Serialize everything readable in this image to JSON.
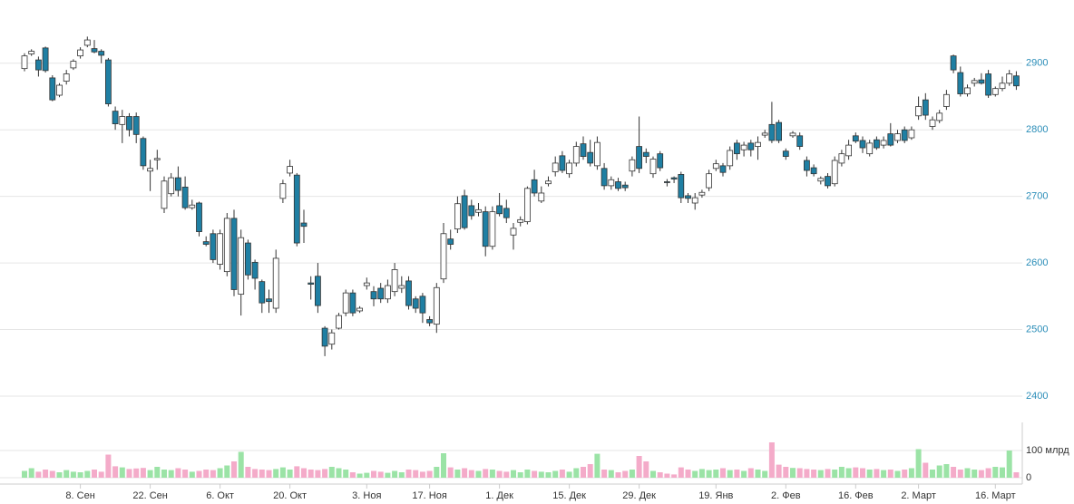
{
  "chart_data": {
    "type": "candlestick",
    "categories": [
      null,
      null,
      null,
      null,
      null,
      null,
      null,
      null,
      "8. Сен",
      null,
      null,
      null,
      null,
      null,
      null,
      null,
      null,
      null,
      "22. Сен",
      null,
      null,
      null,
      null,
      null,
      null,
      null,
      null,
      null,
      "6. Окт",
      null,
      null,
      null,
      null,
      null,
      null,
      null,
      null,
      null,
      "20. Окт",
      null,
      null,
      null,
      null,
      null,
      null,
      null,
      null,
      null,
      null,
      "3. Ноя",
      null,
      null,
      null,
      null,
      null,
      null,
      null,
      null,
      "17. Ноя",
      null,
      null,
      null,
      null,
      null,
      null,
      null,
      null,
      null,
      "1. Дек",
      null,
      null,
      null,
      null,
      null,
      null,
      null,
      null,
      null,
      "15. Дек",
      null,
      null,
      null,
      null,
      null,
      null,
      null,
      null,
      null,
      "29. Дек",
      null,
      null,
      null,
      null,
      null,
      null,
      null,
      null,
      null,
      null,
      "19. Янв",
      null,
      null,
      null,
      null,
      null,
      null,
      null,
      null,
      null,
      "2. Фев",
      null,
      null,
      null,
      null,
      null,
      null,
      null,
      null,
      null,
      "16. Фев",
      null,
      null,
      null,
      null,
      null,
      null,
      null,
      null,
      "2. Март",
      null,
      null,
      null,
      null,
      null,
      null,
      null,
      null,
      null,
      null,
      "16. Март",
      null,
      null,
      null
    ],
    "open": [
      2892,
      2914,
      2905,
      2923,
      2878,
      2852,
      2873,
      2893,
      2911,
      2927,
      2922,
      2918,
      2905,
      2828,
      2808,
      2820,
      2820,
      2787,
      2738,
      2755,
      2682,
      2704,
      2728,
      2714,
      2683,
      2690,
      2632,
      2644,
      2598,
      2587,
      2667,
      2553,
      2630,
      2601,
      2572,
      2546,
      2532,
      2697,
      2735,
      2732,
      2660,
      2570,
      2580,
      2502,
      2478,
      2502,
      2525,
      2555,
      2528,
      2566,
      2557,
      2562,
      2546,
      2557,
      2562,
      2573,
      2546,
      2550,
      2515,
      2508,
      2576,
      2636,
      2651,
      2701,
      2686,
      2676,
      2677,
      2625,
      2686,
      2682,
      2642,
      2661,
      2662,
      2725,
      2693,
      2719,
      2737,
      2761,
      2734,
      2750,
      2779,
      2766,
      2746,
      2742,
      2716,
      2722,
      2717,
      2738,
      2775,
      2766,
      2734,
      2764,
      2722,
      2728,
      2733,
      2701,
      2690,
      2702,
      2713,
      2742,
      2746,
      2746,
      2780,
      2770,
      2780,
      2775,
      2792,
      2808,
      2811,
      2768,
      2791,
      2791,
      2754,
      2743,
      2723,
      2730,
      2719,
      2750,
      2761,
      2791,
      2784,
      2764,
      2785,
      2777,
      2794,
      2784,
      2800,
      2788,
      2821,
      2845,
      2805,
      2814,
      2835,
      2911,
      2886,
      2854,
      2870,
      2875,
      2884,
      2853,
      2862,
      2870,
      2881
    ],
    "high": [
      2915,
      2921,
      2910,
      2925,
      2882,
      2870,
      2890,
      2906,
      2924,
      2940,
      2935,
      2921,
      2908,
      2835,
      2830,
      2825,
      2826,
      2790,
      2755,
      2770,
      2730,
      2735,
      2745,
      2730,
      2695,
      2692,
      2640,
      2650,
      2650,
      2675,
      2680,
      2650,
      2635,
      2605,
      2575,
      2560,
      2620,
      2725,
      2755,
      2735,
      2680,
      2580,
      2600,
      2505,
      2500,
      2525,
      2560,
      2560,
      2535,
      2578,
      2565,
      2570,
      2575,
      2600,
      2580,
      2580,
      2550,
      2555,
      2520,
      2570,
      2660,
      2650,
      2700,
      2710,
      2695,
      2690,
      2685,
      2685,
      2705,
      2695,
      2660,
      2670,
      2715,
      2740,
      2715,
      2730,
      2760,
      2768,
      2755,
      2782,
      2790,
      2785,
      2790,
      2750,
      2730,
      2728,
      2722,
      2760,
      2820,
      2772,
      2760,
      2768,
      2726,
      2730,
      2737,
      2705,
      2705,
      2710,
      2740,
      2755,
      2750,
      2775,
      2785,
      2782,
      2785,
      2790,
      2800,
      2842,
      2815,
      2772,
      2798,
      2796,
      2760,
      2748,
      2730,
      2735,
      2760,
      2770,
      2785,
      2796,
      2790,
      2785,
      2790,
      2790,
      2810,
      2800,
      2805,
      2805,
      2850,
      2855,
      2820,
      2830,
      2860,
      2913,
      2895,
      2868,
      2878,
      2885,
      2890,
      2865,
      2880,
      2890,
      2888
    ],
    "low": [
      2888,
      2911,
      2880,
      2886,
      2843,
      2849,
      2868,
      2890,
      2907,
      2924,
      2915,
      2900,
      2835,
      2800,
      2780,
      2790,
      2780,
      2740,
      2708,
      2740,
      2675,
      2700,
      2700,
      2680,
      2680,
      2640,
      2625,
      2600,
      2590,
      2580,
      2550,
      2521,
      2575,
      2560,
      2525,
      2525,
      2525,
      2690,
      2730,
      2625,
      2630,
      2545,
      2525,
      2460,
      2470,
      2500,
      2520,
      2520,
      2525,
      2560,
      2535,
      2540,
      2540,
      2550,
      2555,
      2530,
      2525,
      2510,
      2505,
      2495,
      2570,
      2620,
      2645,
      2650,
      2665,
      2670,
      2610,
      2620,
      2670,
      2660,
      2620,
      2655,
      2658,
      2700,
      2690,
      2715,
      2730,
      2735,
      2728,
      2745,
      2755,
      2745,
      2740,
      2710,
      2710,
      2708,
      2708,
      2730,
      2735,
      2750,
      2728,
      2738,
      2715,
      2720,
      2690,
      2690,
      2680,
      2698,
      2708,
      2738,
      2730,
      2740,
      2755,
      2760,
      2760,
      2755,
      2788,
      2780,
      2780,
      2755,
      2788,
      2770,
      2730,
      2730,
      2718,
      2712,
      2715,
      2745,
      2755,
      2780,
      2765,
      2760,
      2770,
      2772,
      2775,
      2780,
      2780,
      2785,
      2815,
      2815,
      2800,
      2810,
      2830,
      2885,
      2850,
      2850,
      2865,
      2868,
      2848,
      2850,
      2858,
      2866,
      2860
    ],
    "close": [
      2911,
      2918,
      2890,
      2889,
      2845,
      2867,
      2884,
      2903,
      2920,
      2935,
      2917,
      2912,
      2839,
      2809,
      2820,
      2800,
      2793,
      2746,
      2742,
      2757,
      2723,
      2728,
      2709,
      2683,
      2687,
      2647,
      2628,
      2605,
      2644,
      2667,
      2560,
      2638,
      2582,
      2577,
      2540,
      2542,
      2607,
      2719,
      2745,
      2630,
      2655,
      2568,
      2536,
      2475,
      2495,
      2521,
      2555,
      2525,
      2532,
      2570,
      2546,
      2546,
      2566,
      2590,
      2566,
      2536,
      2532,
      2525,
      2510,
      2563,
      2644,
      2628,
      2689,
      2653,
      2671,
      2680,
      2625,
      2677,
      2674,
      2668,
      2652,
      2665,
      2712,
      2705,
      2705,
      2723,
      2750,
      2739,
      2750,
      2775,
      2760,
      2750,
      2781,
      2716,
      2725,
      2712,
      2713,
      2755,
      2742,
      2760,
      2756,
      2743,
      2721,
      2726,
      2698,
      2697,
      2698,
      2706,
      2734,
      2749,
      2736,
      2769,
      2764,
      2777,
      2770,
      2781,
      2795,
      2784,
      2784,
      2760,
      2795,
      2775,
      2739,
      2734,
      2727,
      2716,
      2754,
      2764,
      2777,
      2783,
      2773,
      2780,
      2773,
      2784,
      2777,
      2794,
      2784,
      2800,
      2835,
      2822,
      2815,
      2825,
      2853,
      2890,
      2854,
      2863,
      2874,
      2870,
      2852,
      2862,
      2870,
      2884,
      2866
    ],
    "ylim": [
      2370,
      2995
    ],
    "yticks": [
      2400,
      2500,
      2600,
      2700,
      2800,
      2900
    ],
    "grid": true,
    "up_color": "#ffffff",
    "down_color": "#1f7fa3",
    "volume": {
      "values": [
        25,
        35,
        22,
        30,
        25,
        20,
        28,
        22,
        20,
        25,
        30,
        22,
        85,
        42,
        38,
        32,
        34,
        36,
        28,
        40,
        30,
        28,
        35,
        30,
        22,
        25,
        30,
        28,
        35,
        45,
        60,
        95,
        40,
        32,
        30,
        28,
        32,
        38,
        30,
        42,
        35,
        30,
        28,
        32,
        40,
        35,
        30,
        20,
        15,
        18,
        25,
        22,
        18,
        25,
        20,
        30,
        28,
        22,
        25,
        40,
        90,
        38,
        30,
        35,
        28,
        25,
        32,
        30,
        25,
        22,
        28,
        20,
        30,
        25,
        22,
        20,
        25,
        30,
        22,
        35,
        40,
        50,
        88,
        30,
        28,
        20,
        25,
        30,
        80,
        60,
        25,
        20,
        15,
        12,
        38,
        30,
        25,
        32,
        28,
        30,
        35,
        28,
        30,
        25,
        35,
        30,
        25,
        130,
        48,
        40,
        36,
        35,
        32,
        30,
        28,
        32,
        30,
        40,
        35,
        38,
        35,
        30,
        32,
        28,
        30,
        25,
        30,
        35,
        105,
        55,
        30,
        45,
        50,
        40,
        30,
        35,
        30,
        28,
        35,
        40,
        38,
        100,
        20
      ],
      "ylim": [
        0,
        200
      ],
      "yticks": [
        0,
        {
          "value": 100,
          "label": "100 млрд"
        }
      ],
      "up_color": "#9be3a6",
      "down_color": "#f4abc9"
    }
  }
}
